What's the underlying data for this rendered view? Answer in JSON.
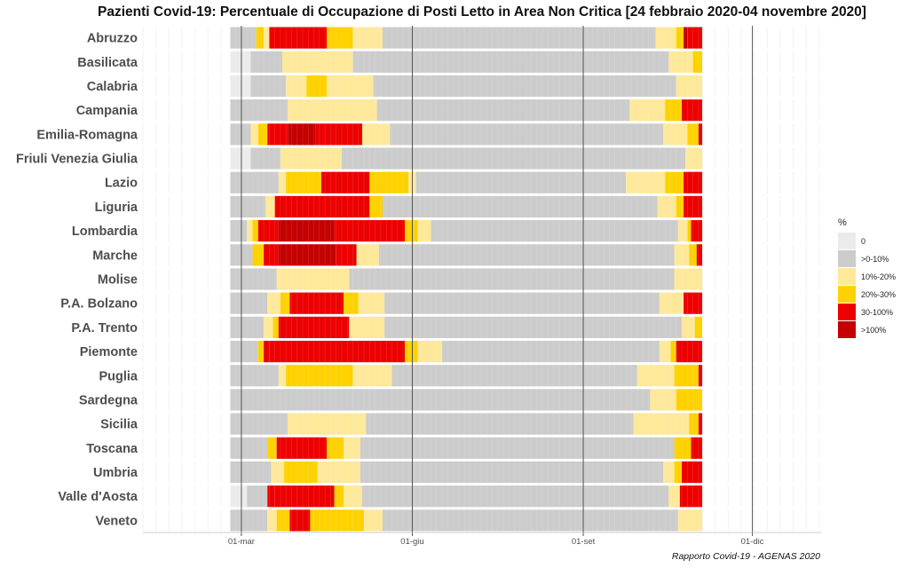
{
  "chart_data": {
    "type": "heatmap",
    "title": "Pazienti Covid-19: Percentuale di Occupazione di Posti Letto in Area Non Critica [24 febbraio 2020-04 novembre 2020]",
    "caption": "Rapporto Covid-19 - AGENAS 2020",
    "x_domain": [
      "2020-01-08",
      "2021-01-07"
    ],
    "x_ticks": [
      {
        "date": "2020-03-01",
        "label": "01-mar"
      },
      {
        "date": "2020-06-01",
        "label": "01-giu"
      },
      {
        "date": "2020-09-01",
        "label": "01-set"
      },
      {
        "date": "2020-12-01",
        "label": "01-dic"
      }
    ],
    "data_start": "2020-02-24",
    "data_end": "2020-11-04",
    "legend": {
      "title": "%",
      "position": "right",
      "categories": [
        {
          "label": "0",
          "color": "#ebebeb"
        },
        {
          "label": ">0-10%",
          "color": "#cccccc"
        },
        {
          "label": "10%-20%",
          "color": "#fee89a"
        },
        {
          "label": "20%-30%",
          "color": "#fdd200"
        },
        {
          "label": "30-100%",
          "color": "#ec0000"
        },
        {
          "label": ">100%",
          "color": "#c40000"
        }
      ]
    },
    "regions": [
      {
        "name": "Abruzzo",
        "segments": [
          [
            "2020-02-24",
            "2020-03-09",
            1
          ],
          [
            "2020-03-09",
            "2020-03-13",
            3
          ],
          [
            "2020-03-13",
            "2020-03-16",
            2
          ],
          [
            "2020-03-16",
            "2020-04-16",
            4
          ],
          [
            "2020-04-16",
            "2020-04-30",
            3
          ],
          [
            "2020-04-30",
            "2020-05-16",
            2
          ],
          [
            "2020-05-16",
            "2020-10-10",
            1
          ],
          [
            "2020-10-10",
            "2020-10-21",
            2
          ],
          [
            "2020-10-21",
            "2020-10-25",
            3
          ],
          [
            "2020-10-25",
            "2020-10-27",
            5
          ],
          [
            "2020-10-27",
            "2020-11-04",
            4
          ]
        ]
      },
      {
        "name": "Basilicata",
        "segments": [
          [
            "2020-02-24",
            "2020-03-06",
            0
          ],
          [
            "2020-03-06",
            "2020-03-23",
            1
          ],
          [
            "2020-03-23",
            "2020-04-30",
            2
          ],
          [
            "2020-04-30",
            "2020-10-17",
            1
          ],
          [
            "2020-10-17",
            "2020-10-30",
            2
          ],
          [
            "2020-10-30",
            "2020-11-04",
            3
          ]
        ]
      },
      {
        "name": "Calabria",
        "segments": [
          [
            "2020-02-24",
            "2020-03-06",
            0
          ],
          [
            "2020-03-06",
            "2020-03-25",
            1
          ],
          [
            "2020-03-25",
            "2020-04-05",
            2
          ],
          [
            "2020-04-05",
            "2020-04-16",
            3
          ],
          [
            "2020-04-16",
            "2020-05-11",
            2
          ],
          [
            "2020-05-11",
            "2020-10-21",
            1
          ],
          [
            "2020-10-21",
            "2020-11-04",
            2
          ]
        ]
      },
      {
        "name": "Campania",
        "segments": [
          [
            "2020-02-24",
            "2020-03-26",
            1
          ],
          [
            "2020-03-26",
            "2020-05-13",
            2
          ],
          [
            "2020-05-13",
            "2020-09-26",
            1
          ],
          [
            "2020-09-26",
            "2020-10-15",
            2
          ],
          [
            "2020-10-15",
            "2020-10-24",
            3
          ],
          [
            "2020-10-24",
            "2020-11-04",
            4
          ]
        ]
      },
      {
        "name": "Emilia-Romagna",
        "segments": [
          [
            "2020-02-24",
            "2020-03-06",
            1
          ],
          [
            "2020-03-06",
            "2020-03-10",
            2
          ],
          [
            "2020-03-10",
            "2020-03-15",
            3
          ],
          [
            "2020-03-15",
            "2020-03-26",
            4
          ],
          [
            "2020-03-26",
            "2020-04-10",
            5
          ],
          [
            "2020-04-10",
            "2020-05-05",
            4
          ],
          [
            "2020-05-05",
            "2020-05-20",
            2
          ],
          [
            "2020-05-20",
            "2020-10-14",
            1
          ],
          [
            "2020-10-14",
            "2020-10-27",
            2
          ],
          [
            "2020-10-27",
            "2020-11-02",
            3
          ],
          [
            "2020-11-02",
            "2020-11-04",
            4
          ]
        ]
      },
      {
        "name": "Friuli Venezia Giulia",
        "segments": [
          [
            "2020-02-24",
            "2020-03-06",
            0
          ],
          [
            "2020-03-06",
            "2020-03-22",
            1
          ],
          [
            "2020-03-22",
            "2020-04-24",
            2
          ],
          [
            "2020-04-24",
            "2020-10-26",
            1
          ],
          [
            "2020-10-26",
            "2020-11-04",
            2
          ]
        ]
      },
      {
        "name": "Lazio",
        "segments": [
          [
            "2020-02-24",
            "2020-03-21",
            1
          ],
          [
            "2020-03-21",
            "2020-03-25",
            2
          ],
          [
            "2020-03-25",
            "2020-04-13",
            3
          ],
          [
            "2020-04-13",
            "2020-05-09",
            4
          ],
          [
            "2020-05-09",
            "2020-05-30",
            3
          ],
          [
            "2020-05-30",
            "2020-06-03",
            2
          ],
          [
            "2020-06-03",
            "2020-09-24",
            1
          ],
          [
            "2020-09-24",
            "2020-10-15",
            2
          ],
          [
            "2020-10-15",
            "2020-10-25",
            3
          ],
          [
            "2020-10-25",
            "2020-11-04",
            4
          ]
        ]
      },
      {
        "name": "Liguria",
        "segments": [
          [
            "2020-02-24",
            "2020-03-14",
            1
          ],
          [
            "2020-03-14",
            "2020-03-19",
            2
          ],
          [
            "2020-03-19",
            "2020-05-09",
            4
          ],
          [
            "2020-05-09",
            "2020-05-16",
            3
          ],
          [
            "2020-05-16",
            "2020-10-11",
            1
          ],
          [
            "2020-10-11",
            "2020-10-21",
            2
          ],
          [
            "2020-10-21",
            "2020-10-25",
            3
          ],
          [
            "2020-10-25",
            "2020-11-04",
            4
          ]
        ]
      },
      {
        "name": "Lombardia",
        "segments": [
          [
            "2020-02-24",
            "2020-03-04",
            1
          ],
          [
            "2020-03-04",
            "2020-03-07",
            2
          ],
          [
            "2020-03-07",
            "2020-03-10",
            3
          ],
          [
            "2020-03-10",
            "2020-03-21",
            4
          ],
          [
            "2020-03-21",
            "2020-04-20",
            5
          ],
          [
            "2020-04-20",
            "2020-05-28",
            4
          ],
          [
            "2020-05-28",
            "2020-06-04",
            3
          ],
          [
            "2020-06-04",
            "2020-06-11",
            2
          ],
          [
            "2020-06-11",
            "2020-10-22",
            1
          ],
          [
            "2020-10-22",
            "2020-10-27",
            2
          ],
          [
            "2020-10-27",
            "2020-10-29",
            3
          ],
          [
            "2020-10-29",
            "2020-11-04",
            4
          ]
        ]
      },
      {
        "name": "Marche",
        "segments": [
          [
            "2020-02-24",
            "2020-03-07",
            1
          ],
          [
            "2020-03-07",
            "2020-03-13",
            3
          ],
          [
            "2020-03-13",
            "2020-03-21",
            4
          ],
          [
            "2020-03-21",
            "2020-04-21",
            5
          ],
          [
            "2020-04-21",
            "2020-05-02",
            4
          ],
          [
            "2020-05-02",
            "2020-05-14",
            2
          ],
          [
            "2020-05-14",
            "2020-10-20",
            1
          ],
          [
            "2020-10-20",
            "2020-10-28",
            2
          ],
          [
            "2020-10-28",
            "2020-11-01",
            3
          ],
          [
            "2020-11-01",
            "2020-11-04",
            4
          ]
        ]
      },
      {
        "name": "Molise",
        "segments": [
          [
            "2020-02-24",
            "2020-03-20",
            1
          ],
          [
            "2020-03-20",
            "2020-04-28",
            2
          ],
          [
            "2020-04-28",
            "2020-10-20",
            1
          ],
          [
            "2020-10-20",
            "2020-11-04",
            2
          ]
        ]
      },
      {
        "name": "P.A. Bolzano",
        "segments": [
          [
            "2020-02-24",
            "2020-03-15",
            1
          ],
          [
            "2020-03-15",
            "2020-03-22",
            2
          ],
          [
            "2020-03-22",
            "2020-03-27",
            3
          ],
          [
            "2020-03-27",
            "2020-04-25",
            4
          ],
          [
            "2020-04-25",
            "2020-05-03",
            3
          ],
          [
            "2020-05-03",
            "2020-05-17",
            2
          ],
          [
            "2020-05-17",
            "2020-10-12",
            1
          ],
          [
            "2020-10-12",
            "2020-10-25",
            2
          ],
          [
            "2020-10-25",
            "2020-11-04",
            4
          ]
        ]
      },
      {
        "name": "P.A. Trento",
        "segments": [
          [
            "2020-02-24",
            "2020-03-13",
            1
          ],
          [
            "2020-03-13",
            "2020-03-18",
            2
          ],
          [
            "2020-03-18",
            "2020-03-21",
            3
          ],
          [
            "2020-03-21",
            "2020-04-28",
            4
          ],
          [
            "2020-04-28",
            "2020-05-17",
            2
          ],
          [
            "2020-05-17",
            "2020-10-24",
            1
          ],
          [
            "2020-10-24",
            "2020-10-31",
            2
          ],
          [
            "2020-10-31",
            "2020-11-04",
            3
          ]
        ]
      },
      {
        "name": "Piemonte",
        "segments": [
          [
            "2020-02-24",
            "2020-03-10",
            1
          ],
          [
            "2020-03-10",
            "2020-03-13",
            3
          ],
          [
            "2020-03-13",
            "2020-03-16",
            4
          ],
          [
            "2020-03-16",
            "2020-05-28",
            4
          ],
          [
            "2020-05-28",
            "2020-06-04",
            3
          ],
          [
            "2020-06-04",
            "2020-06-17",
            2
          ],
          [
            "2020-06-17",
            "2020-10-12",
            1
          ],
          [
            "2020-10-12",
            "2020-10-18",
            2
          ],
          [
            "2020-10-18",
            "2020-10-21",
            3
          ],
          [
            "2020-10-21",
            "2020-11-04",
            4
          ]
        ]
      },
      {
        "name": "Puglia",
        "segments": [
          [
            "2020-02-24",
            "2020-03-21",
            1
          ],
          [
            "2020-03-21",
            "2020-03-25",
            2
          ],
          [
            "2020-03-25",
            "2020-04-30",
            3
          ],
          [
            "2020-04-30",
            "2020-05-21",
            2
          ],
          [
            "2020-05-21",
            "2020-09-30",
            1
          ],
          [
            "2020-09-30",
            "2020-10-20",
            2
          ],
          [
            "2020-10-20",
            "2020-11-02",
            3
          ],
          [
            "2020-11-02",
            "2020-11-04",
            4
          ]
        ]
      },
      {
        "name": "Sardegna",
        "segments": [
          [
            "2020-02-24",
            "2020-10-07",
            1
          ],
          [
            "2020-10-07",
            "2020-10-21",
            2
          ],
          [
            "2020-10-21",
            "2020-11-04",
            3
          ]
        ]
      },
      {
        "name": "Sicilia",
        "segments": [
          [
            "2020-02-24",
            "2020-03-26",
            1
          ],
          [
            "2020-03-26",
            "2020-04-04",
            2
          ],
          [
            "2020-04-04",
            "2020-05-07",
            2
          ],
          [
            "2020-05-07",
            "2020-09-28",
            1
          ],
          [
            "2020-09-28",
            "2020-10-28",
            2
          ],
          [
            "2020-10-28",
            "2020-11-02",
            3
          ],
          [
            "2020-11-02",
            "2020-11-04",
            4
          ]
        ]
      },
      {
        "name": "Toscana",
        "segments": [
          [
            "2020-02-24",
            "2020-03-15",
            1
          ],
          [
            "2020-03-15",
            "2020-03-20",
            3
          ],
          [
            "2020-03-20",
            "2020-04-16",
            4
          ],
          [
            "2020-04-16",
            "2020-04-25",
            3
          ],
          [
            "2020-04-25",
            "2020-05-04",
            2
          ],
          [
            "2020-05-04",
            "2020-10-20",
            1
          ],
          [
            "2020-10-20",
            "2020-10-29",
            3
          ],
          [
            "2020-10-29",
            "2020-11-04",
            4
          ]
        ]
      },
      {
        "name": "Umbria",
        "segments": [
          [
            "2020-02-24",
            "2020-03-17",
            1
          ],
          [
            "2020-03-17",
            "2020-03-24",
            2
          ],
          [
            "2020-03-24",
            "2020-04-11",
            3
          ],
          [
            "2020-04-11",
            "2020-05-04",
            2
          ],
          [
            "2020-05-04",
            "2020-10-14",
            1
          ],
          [
            "2020-10-14",
            "2020-10-20",
            2
          ],
          [
            "2020-10-20",
            "2020-10-24",
            3
          ],
          [
            "2020-10-24",
            "2020-11-04",
            4
          ]
        ]
      },
      {
        "name": "Valle d'Aosta",
        "segments": [
          [
            "2020-02-24",
            "2020-03-04",
            0
          ],
          [
            "2020-03-04",
            "2020-03-15",
            1
          ],
          [
            "2020-03-15",
            "2020-03-19",
            4
          ],
          [
            "2020-03-19",
            "2020-04-20",
            4
          ],
          [
            "2020-04-20",
            "2020-04-25",
            3
          ],
          [
            "2020-04-25",
            "2020-05-05",
            2
          ],
          [
            "2020-05-05",
            "2020-10-17",
            1
          ],
          [
            "2020-10-17",
            "2020-10-23",
            2
          ],
          [
            "2020-10-23",
            "2020-11-04",
            4
          ]
        ]
      },
      {
        "name": "Veneto",
        "segments": [
          [
            "2020-02-24",
            "2020-03-15",
            1
          ],
          [
            "2020-03-15",
            "2020-03-20",
            2
          ],
          [
            "2020-03-20",
            "2020-03-27",
            3
          ],
          [
            "2020-03-27",
            "2020-04-07",
            4
          ],
          [
            "2020-04-07",
            "2020-05-06",
            3
          ],
          [
            "2020-05-06",
            "2020-05-16",
            2
          ],
          [
            "2020-05-16",
            "2020-10-22",
            1
          ],
          [
            "2020-10-22",
            "2020-11-04",
            2
          ]
        ]
      }
    ]
  }
}
